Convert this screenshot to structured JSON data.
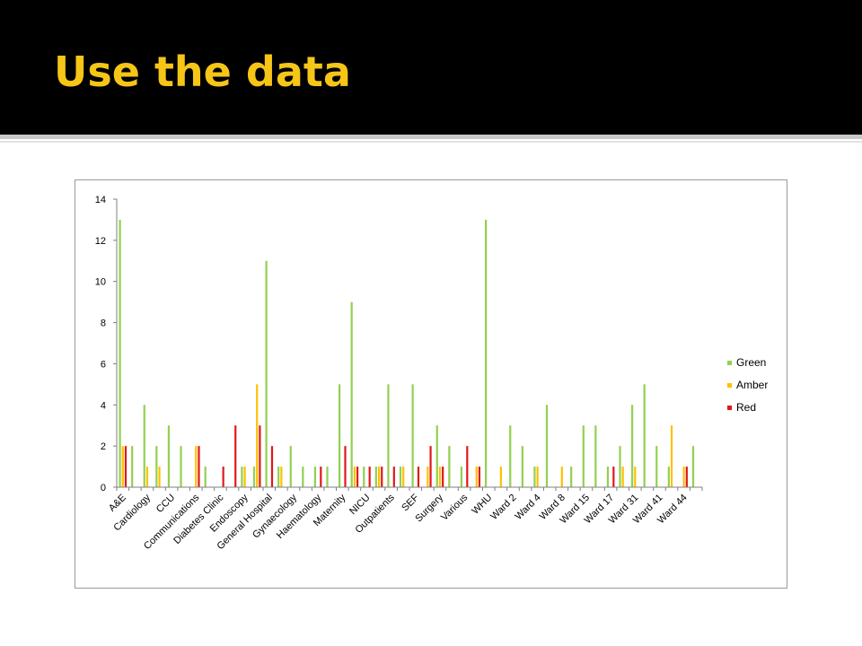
{
  "slide": {
    "title": "Use the data"
  },
  "colors": {
    "title": "#f5c518",
    "header_bg": "#000000",
    "Green": "#92d050",
    "Amber": "#ffc000",
    "Red": "#e0181b",
    "axis": "#7f7f7f"
  },
  "chart_data": {
    "type": "bar",
    "title": "",
    "xlabel": "",
    "ylabel": "",
    "ylim": [
      0,
      14
    ],
    "yticks": [
      0,
      2,
      4,
      6,
      8,
      10,
      12,
      14
    ],
    "grid": false,
    "legend_position": "right",
    "categories": [
      "A&E",
      "",
      "Cardiology",
      "",
      "CCU",
      "",
      "Communications",
      "",
      "Diabetes Clinic",
      "",
      "Endoscopy",
      "",
      "General Hospital",
      "",
      "Gynaecology",
      "",
      "Haematology",
      "",
      "Maternity",
      "",
      "NICU",
      "",
      "Outpatients",
      "",
      "SEF",
      "",
      "Surgery",
      "",
      "Various",
      "",
      "WHU",
      "",
      "Ward 2",
      "",
      "Ward 4",
      "",
      "Ward 8",
      "",
      "Ward 15",
      "",
      "Ward 17",
      "",
      "Ward 31",
      "",
      "Ward 41",
      "",
      "Ward 44",
      ""
    ],
    "series": [
      {
        "name": "Green",
        "values": [
          13,
          2,
          4,
          2,
          3,
          2,
          0,
          1,
          0,
          0,
          1,
          1,
          11,
          1,
          2,
          1,
          1,
          1,
          5,
          9,
          1,
          1,
          5,
          1,
          5,
          0,
          3,
          2,
          1,
          0,
          13,
          0,
          3,
          2,
          1,
          4,
          0,
          1,
          3,
          3,
          1,
          2,
          4,
          5,
          2,
          1,
          0,
          2
        ]
      },
      {
        "name": "Amber",
        "values": [
          2,
          0,
          1,
          1,
          0,
          0,
          2,
          0,
          0,
          0,
          1,
          5,
          0,
          1,
          0,
          0,
          0,
          0,
          0,
          1,
          0,
          1,
          0,
          1,
          0,
          1,
          1,
          0,
          0,
          1,
          0,
          1,
          0,
          0,
          1,
          0,
          1,
          0,
          0,
          0,
          0,
          1,
          1,
          0,
          0,
          3,
          1,
          0
        ]
      },
      {
        "name": "Red",
        "values": [
          2,
          0,
          0,
          0,
          0,
          0,
          2,
          0,
          1,
          3,
          0,
          3,
          2,
          0,
          0,
          0,
          1,
          0,
          2,
          1,
          1,
          1,
          1,
          0,
          1,
          2,
          1,
          0,
          2,
          1,
          0,
          0,
          0,
          0,
          0,
          0,
          0,
          0,
          0,
          0,
          1,
          0,
          0,
          0,
          0,
          0,
          1,
          0
        ]
      }
    ]
  }
}
